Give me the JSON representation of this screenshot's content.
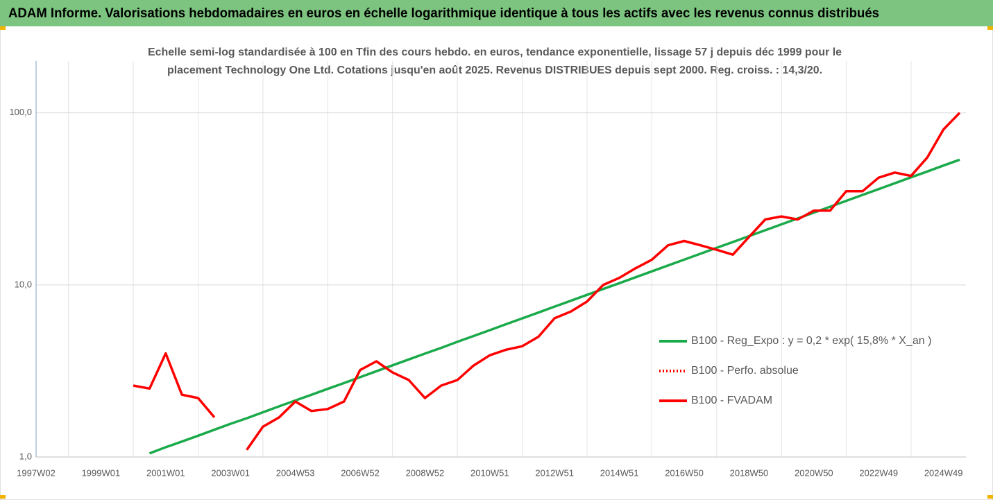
{
  "chart_data": {
    "type": "line",
    "title": "ADAM Informe. Valorisations hebdomadaires en euros en échelle logarithmique identique à tous les actifs avec les revenus connus distribués",
    "subtitle": [
      "Echelle semi-log standardisée à 100 en Tfin des cours hebdo. en euros, tendance exponentielle, lissage 57 j depuis déc 1999 pour le",
      "placement Technology One Ltd. Cotations jusqu'en août 2025. Revenus DISTRIBUES depuis sept 2000.  Reg. croiss. : 14,3/20."
    ],
    "log_scale": true,
    "grid": true,
    "ylim": [
      1,
      200
    ],
    "yticks": [
      {
        "value": 1,
        "label": "1,0"
      },
      {
        "value": 10,
        "label": "10,0"
      },
      {
        "value": 100,
        "label": "100,0"
      }
    ],
    "categories": [
      "1997W02",
      null,
      null,
      null,
      "1999W01",
      null,
      null,
      null,
      "2001W01",
      null,
      null,
      null,
      "2003W01",
      null,
      null,
      null,
      "2004W53",
      null,
      null,
      null,
      "2006W52",
      null,
      null,
      null,
      "2008W52",
      null,
      null,
      null,
      "2010W51",
      null,
      null,
      null,
      "2012W51",
      null,
      null,
      null,
      "2014W51",
      null,
      null,
      null,
      "2016W50",
      null,
      null,
      null,
      "2018W50",
      null,
      null,
      null,
      "2020W50",
      null,
      null,
      null,
      "2022W49",
      null,
      null,
      null,
      "2024W49",
      null
    ],
    "series": [
      {
        "name": "B100 - Reg_Expo : y = 0,2 * exp( 15,8% *  X_an )",
        "color": "#1aaa4a",
        "style": "solid",
        "values": [
          null,
          null,
          null,
          null,
          null,
          null,
          null,
          1.05,
          1.14,
          1.23,
          1.33,
          1.44,
          1.56,
          1.68,
          1.82,
          1.97,
          2.13,
          2.3,
          2.49,
          2.69,
          2.91,
          3.15,
          3.41,
          3.69,
          3.99,
          4.31,
          4.67,
          5.05,
          5.46,
          5.91,
          6.39,
          6.91,
          7.48,
          8.09,
          8.75,
          9.47,
          10.24,
          11.08,
          11.99,
          12.97,
          14.03,
          15.18,
          16.42,
          17.76,
          19.21,
          20.79,
          22.49,
          24.33,
          26.32,
          28.47,
          30.8,
          33.32,
          36.05,
          39.0,
          42.2,
          45.6,
          49.4,
          53.4
        ]
      },
      {
        "name": "B100 - Perfo. absolue",
        "color": "#ff0000",
        "style": "dotted",
        "values": [
          null,
          null,
          null,
          null,
          null,
          null,
          null,
          null,
          null,
          null,
          null,
          null,
          null,
          null,
          null,
          null,
          null,
          null,
          null,
          null,
          null,
          null,
          null,
          null,
          null,
          null,
          null,
          null,
          null,
          null,
          null,
          null,
          null,
          null,
          null,
          null,
          null,
          null,
          null,
          null,
          null,
          null,
          null,
          null,
          null,
          null,
          null,
          null,
          null,
          null,
          null,
          null,
          null,
          null,
          null,
          null,
          null,
          null
        ]
      },
      {
        "name": "B100 - FVADAM",
        "color": "#ff0000",
        "style": "solid",
        "values": [
          null,
          null,
          null,
          null,
          null,
          null,
          2.6,
          2.5,
          4.0,
          2.3,
          2.2,
          1.7,
          null,
          1.1,
          1.5,
          1.7,
          2.1,
          1.85,
          1.9,
          2.1,
          3.2,
          3.6,
          3.1,
          2.8,
          2.2,
          2.6,
          2.8,
          3.4,
          3.9,
          4.2,
          4.4,
          5.0,
          6.4,
          7.0,
          8.0,
          10.0,
          11.0,
          12.5,
          14,
          17,
          18,
          17,
          16,
          15,
          19,
          24,
          25,
          24,
          27,
          27,
          35,
          35,
          42,
          45,
          43,
          55,
          80,
          100
        ]
      }
    ]
  }
}
